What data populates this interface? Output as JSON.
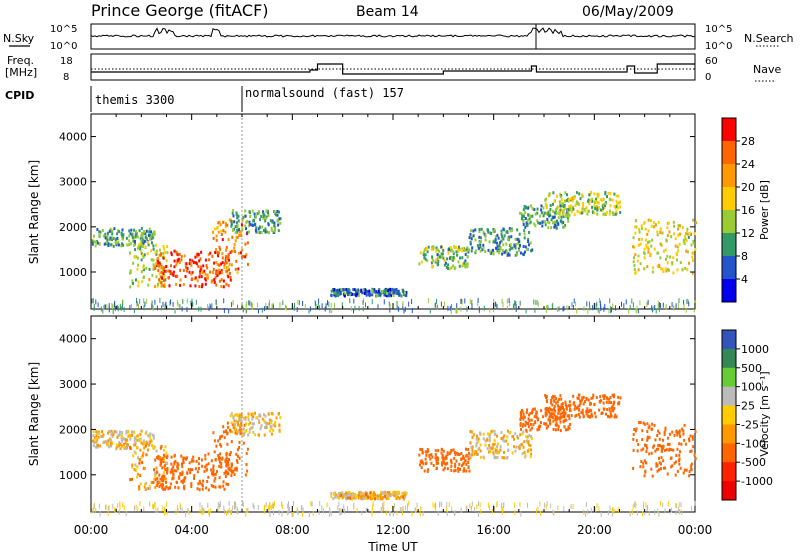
{
  "header": {
    "station": "Prince George (fitACF)",
    "beam": "Beam 14",
    "date": "06/May/2009"
  },
  "top_panels": {
    "nsky_label": "N.Sky",
    "nsearch_label": "N.Search",
    "freq_label_1": "Freq.",
    "freq_label_2": "[MHz]",
    "nave_label": "Nave",
    "cpid_label": "CPID",
    "nsky_ticks": [
      "10^5",
      "10^0"
    ],
    "nsearch_ticks": [
      "10^5",
      "10^0"
    ],
    "freq_ticks": [
      "18",
      "8"
    ],
    "nave_ticks": [
      "60",
      "0"
    ]
  },
  "cpid": [
    {
      "name": "themis 3300",
      "start_hour": 0,
      "end_hour": 6
    },
    {
      "name": "normalsound (fast) 157",
      "start_hour": 6,
      "end_hour": 24
    }
  ],
  "colorbars": {
    "power": {
      "label": "Power [dB]",
      "ticks": [
        "28",
        "24",
        "20",
        "16",
        "12",
        "8",
        "4"
      ],
      "colors": [
        "#ff0000",
        "#ff6600",
        "#ff9900",
        "#ffcc00",
        "#99cc33",
        "#339966",
        "#2255cc",
        "#0000ee"
      ]
    },
    "velocity": {
      "label": "Velocity [m s⁻¹]",
      "ticks": [
        "1000",
        "500",
        "100",
        "25",
        "-25",
        "-100",
        "-500",
        "-1000"
      ],
      "colors": [
        "#3355bb",
        "#338855",
        "#66cc33",
        "#bbbbbb",
        "#ffcc00",
        "#ff9900",
        "#ff6600",
        "#ff2200",
        "#ee0000"
      ]
    }
  },
  "chart_data": [
    {
      "type": "heatmap",
      "title": "",
      "xlabel": "",
      "ylabel": "Slant Range [km]",
      "xlim": [
        0,
        24
      ],
      "ylim": [
        180,
        4500
      ],
      "x_ticks": [
        "00:00",
        "04:00",
        "08:00",
        "12:00",
        "16:00",
        "20:00",
        "00:00"
      ],
      "y_ticks": [
        1000,
        2000,
        3000,
        4000
      ],
      "variable": "Power [dB]",
      "clim": [
        0,
        30
      ],
      "regions": [
        {
          "t0": 0.0,
          "t1": 2.5,
          "r0": 1600,
          "r1": 2000,
          "value": 10
        },
        {
          "t0": 1.5,
          "t1": 3.0,
          "r0": 700,
          "r1": 1700,
          "value": 14
        },
        {
          "t0": 2.5,
          "t1": 5.6,
          "r0": 700,
          "r1": 1500,
          "value": 26
        },
        {
          "t0": 4.8,
          "t1": 6.2,
          "r0": 1000,
          "r1": 2200,
          "value": 22
        },
        {
          "t0": 5.5,
          "t1": 7.5,
          "r0": 1900,
          "r1": 2400,
          "value": 10
        },
        {
          "t0": 9.5,
          "t1": 12.5,
          "r0": 500,
          "r1": 650,
          "value": 7
        },
        {
          "t0": 13.0,
          "t1": 15.0,
          "r0": 1100,
          "r1": 1600,
          "value": 12
        },
        {
          "t0": 15.0,
          "t1": 17.5,
          "r0": 1400,
          "r1": 2000,
          "value": 9
        },
        {
          "t0": 17.0,
          "t1": 19.0,
          "r0": 2000,
          "r1": 2500,
          "value": 10
        },
        {
          "t0": 18.0,
          "t1": 21.0,
          "r0": 2300,
          "r1": 2800,
          "value": 14
        },
        {
          "t0": 21.5,
          "t1": 24.0,
          "r0": 1000,
          "r1": 2200,
          "value": 16
        }
      ]
    },
    {
      "type": "heatmap",
      "title": "",
      "xlabel": "Time UT",
      "ylabel": "Slant Range [km]",
      "xlim": [
        0,
        24
      ],
      "ylim": [
        180,
        4500
      ],
      "x_ticks": [
        "00:00",
        "04:00",
        "08:00",
        "12:00",
        "16:00",
        "20:00",
        "00:00"
      ],
      "y_ticks": [
        1000,
        2000,
        3000,
        4000
      ],
      "variable": "Velocity [m s⁻¹]",
      "clim": [
        -1000,
        1000
      ],
      "regions": [
        {
          "t0": 0.0,
          "t1": 2.5,
          "r0": 1600,
          "r1": 2000,
          "value": 0
        },
        {
          "t0": 1.5,
          "t1": 3.0,
          "r0": 700,
          "r1": 1700,
          "value": -60
        },
        {
          "t0": 2.5,
          "t1": 5.6,
          "r0": 700,
          "r1": 1500,
          "value": -300
        },
        {
          "t0": 4.8,
          "t1": 6.2,
          "r0": 1000,
          "r1": 2200,
          "value": -200
        },
        {
          "t0": 5.5,
          "t1": 7.5,
          "r0": 1900,
          "r1": 2400,
          "value": 0
        },
        {
          "t0": 9.5,
          "t1": 12.5,
          "r0": 500,
          "r1": 650,
          "value": -20
        },
        {
          "t0": 13.0,
          "t1": 15.0,
          "r0": 1100,
          "r1": 1600,
          "value": -250
        },
        {
          "t0": 15.0,
          "t1": 17.5,
          "r0": 1400,
          "r1": 2000,
          "value": 0
        },
        {
          "t0": 17.0,
          "t1": 19.0,
          "r0": 2000,
          "r1": 2500,
          "value": -300
        },
        {
          "t0": 18.0,
          "t1": 21.0,
          "r0": 2300,
          "r1": 2800,
          "value": -400
        },
        {
          "t0": 21.5,
          "t1": 24.0,
          "r0": 1000,
          "r1": 2200,
          "value": -350
        }
      ]
    }
  ]
}
